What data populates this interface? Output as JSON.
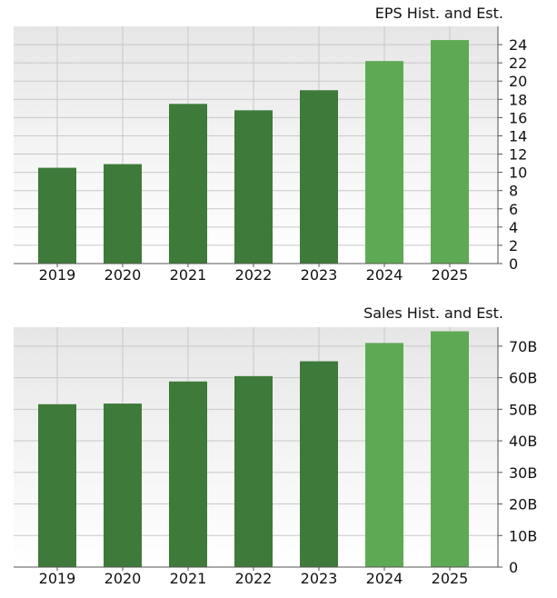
{
  "chart_data": [
    {
      "type": "bar",
      "title": "EPS Hist. and Est.",
      "categories": [
        "2019",
        "2020",
        "2021",
        "2022",
        "2023",
        "2024",
        "2025"
      ],
      "values": [
        10.5,
        10.9,
        17.5,
        16.8,
        19.0,
        22.2,
        24.5
      ],
      "estimate_flags": [
        false,
        false,
        false,
        false,
        false,
        true,
        true
      ],
      "ylim": [
        0,
        26
      ],
      "yticks": [
        0,
        2,
        4,
        6,
        8,
        10,
        12,
        14,
        16,
        18,
        20,
        22,
        24
      ],
      "ytick_labels": [
        "0",
        "2",
        "4",
        "6",
        "8",
        "10",
        "12",
        "14",
        "16",
        "18",
        "20",
        "22",
        "24"
      ],
      "y_axis_side": "right",
      "grid": true,
      "colors": {
        "historical": "#3e7a39",
        "estimate": "#5eaa54"
      }
    },
    {
      "type": "bar",
      "title": "Sales Hist. and Est.",
      "categories": [
        "2019",
        "2020",
        "2021",
        "2022",
        "2023",
        "2024",
        "2025"
      ],
      "values": [
        51.6,
        51.8,
        58.8,
        60.5,
        65.2,
        71.0,
        74.7
      ],
      "estimate_flags": [
        false,
        false,
        false,
        false,
        false,
        true,
        true
      ],
      "ylim": [
        0,
        76
      ],
      "yticks": [
        0,
        10,
        20,
        30,
        40,
        50,
        60,
        70
      ],
      "ytick_labels": [
        "0",
        "10B",
        "20B",
        "30B",
        "40B",
        "50B",
        "60B",
        "70B"
      ],
      "y_axis_side": "right",
      "grid": true,
      "colors": {
        "historical": "#3e7a39",
        "estimate": "#5eaa54"
      }
    }
  ]
}
